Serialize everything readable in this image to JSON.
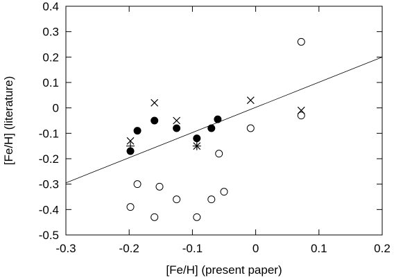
{
  "chart_data": {
    "type": "scatter",
    "xlabel": "[Fe/H] (present paper)",
    "ylabel": "[Fe/H] (literature)",
    "xlim": [
      -0.3,
      0.2
    ],
    "ylim": [
      -0.5,
      0.4
    ],
    "x_ticks": [
      "-0.3",
      "-0.2",
      "-0.1",
      "0",
      "0.1",
      "0.2"
    ],
    "y_ticks": [
      "-0.5",
      "-0.4",
      "-0.3",
      "-0.2",
      "-0.1",
      "0",
      "0.1",
      "0.2",
      "0.3",
      "0.4"
    ],
    "grid": false,
    "fit_line": {
      "x": [
        -0.3,
        0.2
      ],
      "y": [
        -0.295,
        0.2
      ]
    },
    "series": [
      {
        "marker": "filled-circle",
        "points": [
          {
            "x": -0.198,
            "y": -0.17
          },
          {
            "x": -0.187,
            "y": -0.09
          },
          {
            "x": -0.16,
            "y": -0.05
          },
          {
            "x": -0.125,
            "y": -0.08
          },
          {
            "x": -0.093,
            "y": -0.12
          },
          {
            "x": -0.07,
            "y": -0.08
          },
          {
            "x": -0.06,
            "y": -0.045
          }
        ]
      },
      {
        "marker": "open-circle",
        "points": [
          {
            "x": -0.198,
            "y": -0.39
          },
          {
            "x": -0.187,
            "y": -0.3
          },
          {
            "x": -0.16,
            "y": -0.43
          },
          {
            "x": -0.152,
            "y": -0.31
          },
          {
            "x": -0.125,
            "y": -0.36
          },
          {
            "x": -0.093,
            "y": -0.43
          },
          {
            "x": -0.07,
            "y": -0.36
          },
          {
            "x": -0.058,
            "y": -0.18
          },
          {
            "x": -0.05,
            "y": -0.33
          },
          {
            "x": -0.008,
            "y": -0.08
          },
          {
            "x": 0.072,
            "y": 0.26
          },
          {
            "x": 0.072,
            "y": -0.03
          }
        ]
      },
      {
        "marker": "cross",
        "points": [
          {
            "x": -0.198,
            "y": -0.13
          },
          {
            "x": -0.16,
            "y": 0.02
          },
          {
            "x": -0.125,
            "y": -0.05
          },
          {
            "x": -0.093,
            "y": -0.15
          },
          {
            "x": -0.008,
            "y": 0.03
          },
          {
            "x": 0.072,
            "y": -0.01
          }
        ]
      },
      {
        "marker": "plus",
        "points": [
          {
            "x": -0.198,
            "y": -0.15
          },
          {
            "x": -0.093,
            "y": -0.15
          }
        ]
      }
    ]
  }
}
